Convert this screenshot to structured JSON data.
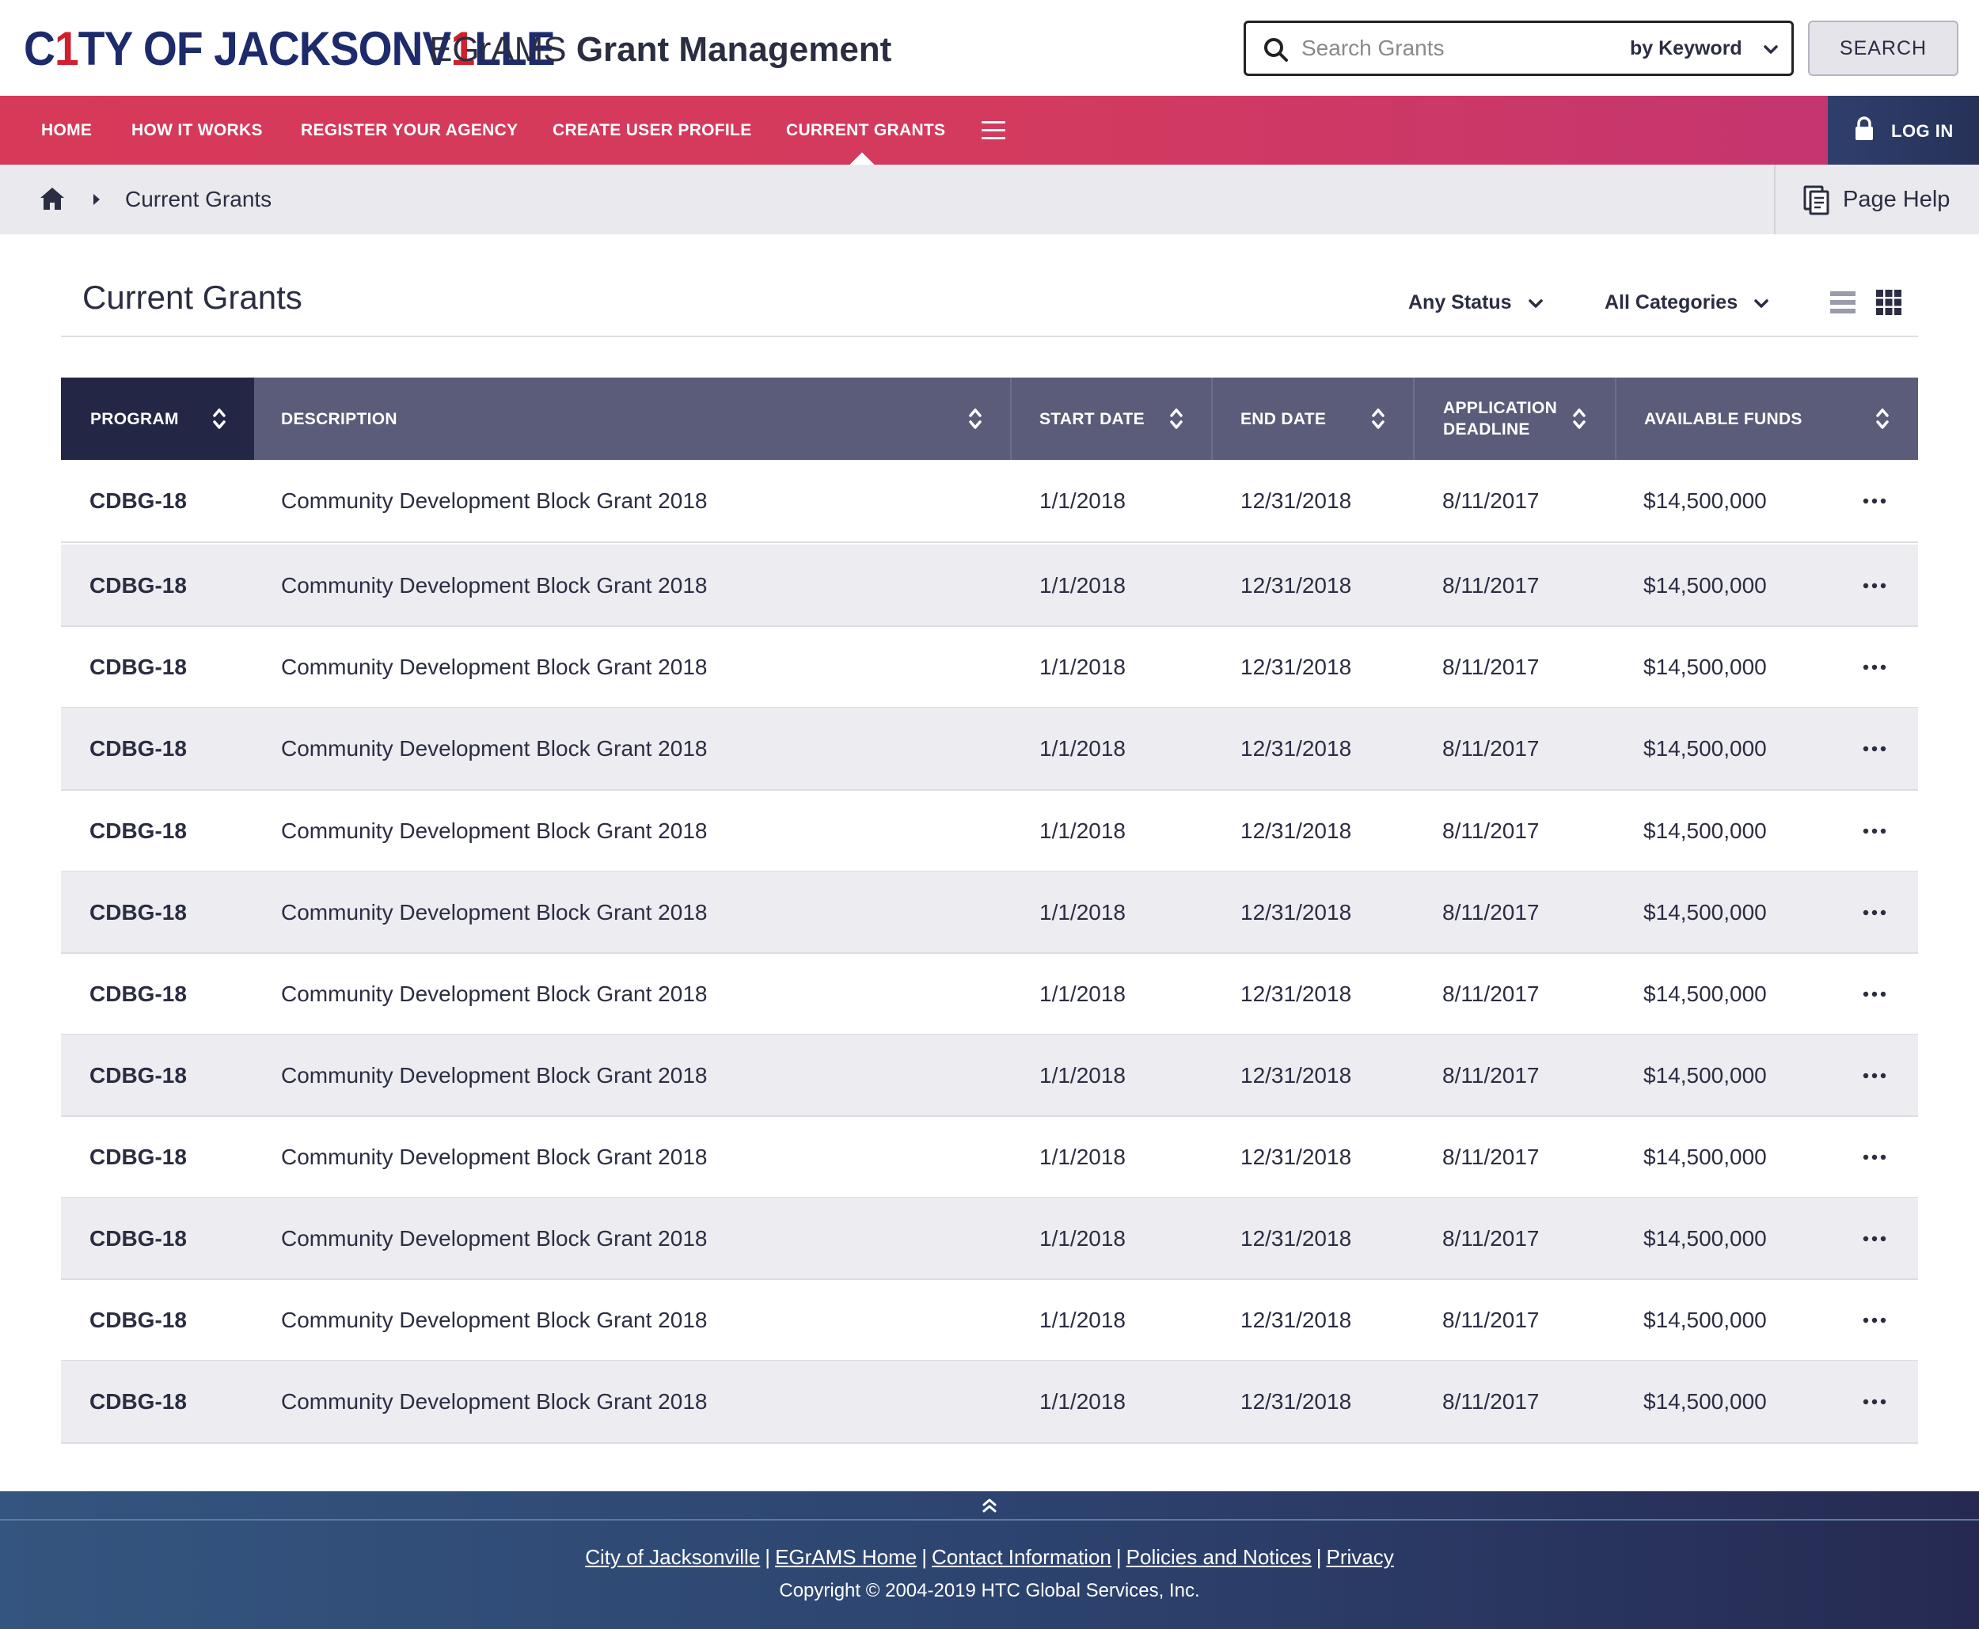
{
  "header": {
    "logo_part1": "C",
    "logo_part2": "1",
    "logo_part3": "TY OF JACKSONV",
    "logo_part4": "1",
    "logo_part5": "LLE",
    "app_prefix": "EGrAMS",
    "app_main": "Grant Management",
    "search": {
      "placeholder": "Search Grants",
      "mode": "by Keyword",
      "button": "SEARCH"
    }
  },
  "nav": {
    "items": [
      {
        "label": "HOME"
      },
      {
        "label": "HOW IT WORKS"
      },
      {
        "label": "REGISTER YOUR AGENCY"
      },
      {
        "label": "CREATE USER PROFILE"
      },
      {
        "label": "CURRENT GRANTS"
      }
    ],
    "active": "CURRENT GRANTS",
    "login": "LOG IN"
  },
  "breadcrumb": {
    "current": "Current Grants",
    "help": "Page Help"
  },
  "main": {
    "title": "Current Grants",
    "status_filter": "Any Status",
    "category_filter": "All Categories"
  },
  "table": {
    "columns": [
      {
        "label": "PROGRAM"
      },
      {
        "label": "DESCRIPTION"
      },
      {
        "label": "START DATE"
      },
      {
        "label": "END DATE"
      },
      {
        "label_line1": "APPLICATION",
        "label_line2": "DEADLINE"
      },
      {
        "label": "AVAILABLE FUNDS"
      }
    ],
    "rows": [
      {
        "program": "CDBG-18",
        "description": "Community Development Block Grant 2018",
        "start": "1/1/2018",
        "end": "12/31/2018",
        "deadline": "8/11/2017",
        "funds": "$14,500,000"
      },
      {
        "program": "CDBG-18",
        "description": "Community Development Block Grant 2018",
        "start": "1/1/2018",
        "end": "12/31/2018",
        "deadline": "8/11/2017",
        "funds": "$14,500,000"
      },
      {
        "program": "CDBG-18",
        "description": "Community Development Block Grant 2018",
        "start": "1/1/2018",
        "end": "12/31/2018",
        "deadline": "8/11/2017",
        "funds": "$14,500,000"
      },
      {
        "program": "CDBG-18",
        "description": "Community Development Block Grant 2018",
        "start": "1/1/2018",
        "end": "12/31/2018",
        "deadline": "8/11/2017",
        "funds": "$14,500,000"
      },
      {
        "program": "CDBG-18",
        "description": "Community Development Block Grant 2018",
        "start": "1/1/2018",
        "end": "12/31/2018",
        "deadline": "8/11/2017",
        "funds": "$14,500,000"
      },
      {
        "program": "CDBG-18",
        "description": "Community Development Block Grant 2018",
        "start": "1/1/2018",
        "end": "12/31/2018",
        "deadline": "8/11/2017",
        "funds": "$14,500,000"
      },
      {
        "program": "CDBG-18",
        "description": "Community Development Block Grant 2018",
        "start": "1/1/2018",
        "end": "12/31/2018",
        "deadline": "8/11/2017",
        "funds": "$14,500,000"
      },
      {
        "program": "CDBG-18",
        "description": "Community Development Block Grant 2018",
        "start": "1/1/2018",
        "end": "12/31/2018",
        "deadline": "8/11/2017",
        "funds": "$14,500,000"
      },
      {
        "program": "CDBG-18",
        "description": "Community Development Block Grant 2018",
        "start": "1/1/2018",
        "end": "12/31/2018",
        "deadline": "8/11/2017",
        "funds": "$14,500,000"
      },
      {
        "program": "CDBG-18",
        "description": "Community Development Block Grant 2018",
        "start": "1/1/2018",
        "end": "12/31/2018",
        "deadline": "8/11/2017",
        "funds": "$14,500,000"
      },
      {
        "program": "CDBG-18",
        "description": "Community Development Block Grant 2018",
        "start": "1/1/2018",
        "end": "12/31/2018",
        "deadline": "8/11/2017",
        "funds": "$14,500,000"
      },
      {
        "program": "CDBG-18",
        "description": "Community Development Block Grant 2018",
        "start": "1/1/2018",
        "end": "12/31/2018",
        "deadline": "8/11/2017",
        "funds": "$14,500,000"
      }
    ]
  },
  "footer": {
    "links": [
      {
        "label": "City of Jacksonville"
      },
      {
        "label": "EGrAMS Home"
      },
      {
        "label": "Contact Information"
      },
      {
        "label": "Policies and Notices"
      },
      {
        "label": "Privacy"
      }
    ],
    "separator": "|",
    "copyright": "Copyright © 2004-2019 HTC Global Services, Inc."
  },
  "colors": {
    "nav_start": "#d73958",
    "nav_end": "#c23572",
    "table_header": "#5b5c79",
    "table_header_active": "#242645",
    "row_alt": "#ececf1",
    "logo_blue": "#1d2a6b",
    "logo_red": "#d0202e",
    "footer": "#2d4470"
  },
  "icons": [
    "search-icon",
    "chevron-down-icon",
    "hamburger-icon",
    "lock-icon",
    "home-icon",
    "chevron-right-icon",
    "page-help-icon",
    "list-view-icon",
    "grid-view-icon",
    "sort-icon",
    "more-options-icon",
    "back-to-top-icon"
  ]
}
